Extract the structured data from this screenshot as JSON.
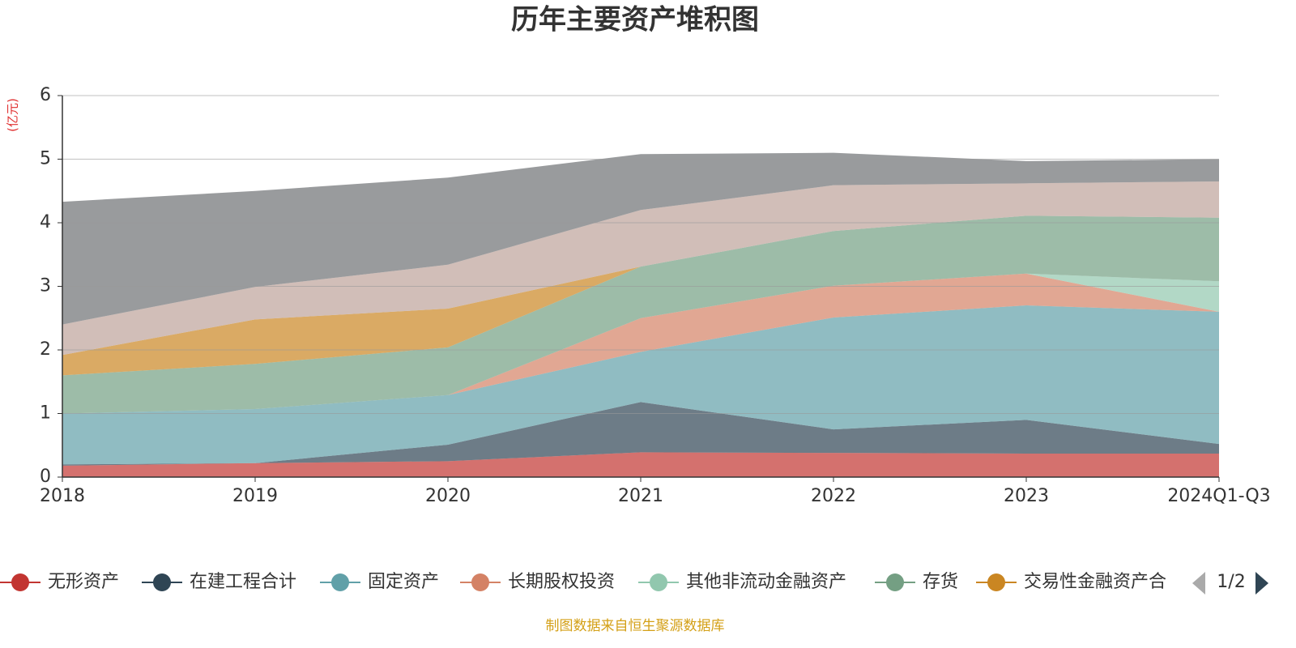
{
  "chart_data": {
    "type": "area",
    "title": "历年主要资产堆积图",
    "y_axis_label": "(亿元)",
    "source": "制图数据来自恒生聚源数据库",
    "legend_page": "1/2",
    "stacked": true,
    "categories": [
      "2018",
      "2019",
      "2020",
      "2021",
      "2022",
      "2023",
      "2024Q1-Q3"
    ],
    "ylim": [
      0,
      6
    ],
    "yticks": [
      0,
      1,
      2,
      3,
      4,
      5,
      6
    ],
    "grid": true,
    "series": [
      {
        "name": "无形资产",
        "color": "#c23531",
        "values": [
          0.18,
          0.22,
          0.25,
          0.39,
          0.38,
          0.37,
          0.37
        ]
      },
      {
        "name": "在建工程合计",
        "color": "#2f4554",
        "values": [
          0.02,
          0,
          0.26,
          0.79,
          0.37,
          0.53,
          0.15
        ]
      },
      {
        "name": "固定资产",
        "color": "#61a0a8",
        "values": [
          0.8,
          0.85,
          0.78,
          0.79,
          1.76,
          1.8,
          2.08
        ]
      },
      {
        "name": "长期股权投资",
        "color": "#d48265",
        "values": [
          0,
          0,
          0,
          0.53,
          0.5,
          0.5,
          0
        ]
      },
      {
        "name": "其他非流动金融资产",
        "color": "#91c7ae",
        "values": [
          0,
          0,
          0,
          0,
          0,
          0,
          0.48
        ]
      },
      {
        "name": "存货",
        "color": "#749f83",
        "values": [
          0.6,
          0.71,
          0.75,
          0.81,
          0.86,
          0.91,
          1.0
        ]
      },
      {
        "name": "交易性金融资产合",
        "color": "#ca8622",
        "values": [
          0.32,
          0.7,
          0.61,
          0,
          0,
          0,
          0
        ]
      },
      {
        "color": "#bda29a",
        "values": [
          0.48,
          0.51,
          0.69,
          0.89,
          0.72,
          0.51,
          0.57
        ]
      },
      {
        "color": "#6e7074",
        "values": [
          1.93,
          1.51,
          1.37,
          0.88,
          0.51,
          0.35,
          0.35
        ]
      }
    ]
  }
}
